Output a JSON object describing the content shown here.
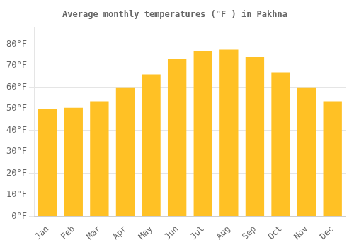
{
  "chart_data": {
    "type": "bar",
    "title": "Average monthly temperatures (°F ) in Pakhna",
    "categories": [
      "Jan",
      "Feb",
      "Mar",
      "Apr",
      "May",
      "Jun",
      "Jul",
      "Aug",
      "Sep",
      "Oct",
      "Nov",
      "Dec"
    ],
    "values": [
      50,
      50.5,
      53.5,
      60,
      66,
      73,
      77,
      77.5,
      74,
      67,
      60,
      53.5
    ],
    "color": "#FFC125",
    "ylim": [
      0,
      88
    ],
    "yticks": [
      {
        "value": 0,
        "label": "0°F"
      },
      {
        "value": 10,
        "label": "10°F"
      },
      {
        "value": 20,
        "label": "20°F"
      },
      {
        "value": 30,
        "label": "30°F"
      },
      {
        "value": 40,
        "label": "40°F"
      },
      {
        "value": 50,
        "label": "50°F"
      },
      {
        "value": 60,
        "label": "60°F"
      },
      {
        "value": 70,
        "label": "70°F"
      },
      {
        "value": 80,
        "label": "80°F"
      }
    ],
    "grid": true
  }
}
